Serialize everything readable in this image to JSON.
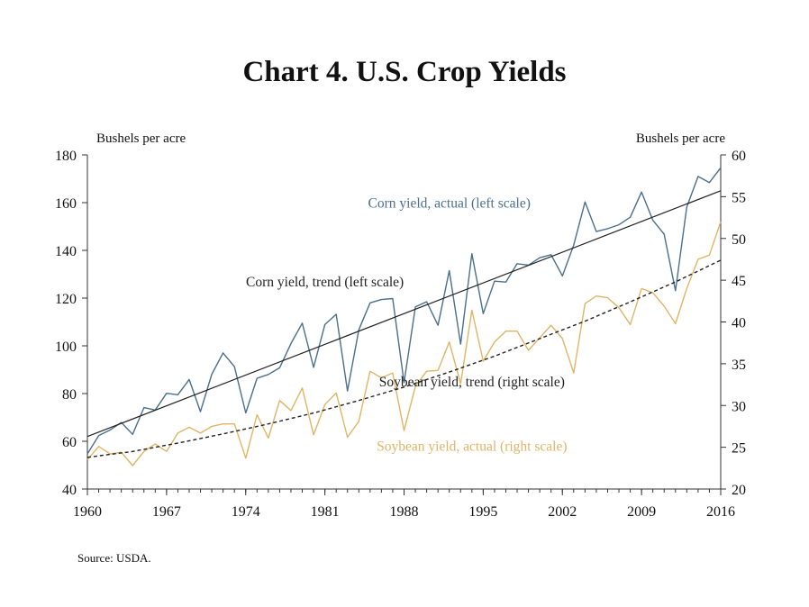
{
  "title": "Chart 4. U.S. Crop Yields",
  "source": "Source: USDA.",
  "colors": {
    "corn": "#4a6f8f",
    "soybean": "#e2b465",
    "trend": "#222222",
    "axis": "#333333"
  },
  "chart_data": {
    "type": "line",
    "left_axis": {
      "label": "Bushels per acre",
      "range": [
        40,
        180
      ],
      "ticks": [
        40,
        60,
        80,
        100,
        120,
        140,
        160,
        180
      ]
    },
    "right_axis": {
      "label": "Bushels per acre",
      "range": [
        20,
        60
      ],
      "ticks": [
        20,
        25,
        30,
        35,
        40,
        45,
        50,
        55,
        60
      ]
    },
    "x_range": [
      1960,
      2016
    ],
    "x_ticks": [
      1960,
      1967,
      1974,
      1981,
      1988,
      1995,
      2002,
      2009,
      2016
    ],
    "grid": false,
    "series": [
      {
        "name": "Corn yield, actual (left scale)",
        "axis": "left",
        "style": "solid",
        "x": [
          1960,
          1961,
          1962,
          1963,
          1964,
          1965,
          1966,
          1967,
          1968,
          1969,
          1970,
          1971,
          1972,
          1973,
          1974,
          1975,
          1976,
          1977,
          1978,
          1979,
          1980,
          1981,
          1982,
          1983,
          1984,
          1985,
          1986,
          1987,
          1988,
          1989,
          1990,
          1991,
          1992,
          1993,
          1994,
          1995,
          1996,
          1997,
          1998,
          1999,
          2000,
          2001,
          2002,
          2003,
          2004,
          2005,
          2006,
          2007,
          2008,
          2009,
          2010,
          2011,
          2012,
          2013,
          2014,
          2015,
          2016
        ],
        "y": [
          54.7,
          62.4,
          64.7,
          67.9,
          62.9,
          74.1,
          73.1,
          80.1,
          79.5,
          85.9,
          72.4,
          88.1,
          97.0,
          91.3,
          71.9,
          86.4,
          88.0,
          90.8,
          101.0,
          109.5,
          91.0,
          108.9,
          113.2,
          81.1,
          106.7,
          118.0,
          119.4,
          119.8,
          84.6,
          116.3,
          118.5,
          108.6,
          131.5,
          100.7,
          138.6,
          113.5,
          127.1,
          126.7,
          134.4,
          133.8,
          136.9,
          138.2,
          129.3,
          142.2,
          160.3,
          147.9,
          149.1,
          150.7,
          153.9,
          164.4,
          152.6,
          146.8,
          123.1,
          158.1,
          171.0,
          168.4,
          174.6
        ]
      },
      {
        "name": "Corn yield, trend (left scale)",
        "axis": "left",
        "style": "solid",
        "x": [
          1960,
          2016
        ],
        "y": [
          62,
          165
        ]
      },
      {
        "name": "Soybean yield, actual (right scale)",
        "axis": "right",
        "style": "solid",
        "x": [
          1960,
          1961,
          1962,
          1963,
          1964,
          1965,
          1966,
          1967,
          1968,
          1969,
          1970,
          1971,
          1972,
          1973,
          1974,
          1975,
          1976,
          1977,
          1978,
          1979,
          1980,
          1981,
          1982,
          1983,
          1984,
          1985,
          1986,
          1987,
          1988,
          1989,
          1990,
          1991,
          1992,
          1993,
          1994,
          1995,
          1996,
          1997,
          1998,
          1999,
          2000,
          2001,
          2002,
          2003,
          2004,
          2005,
          2006,
          2007,
          2008,
          2009,
          2010,
          2011,
          2012,
          2013,
          2014,
          2015,
          2016
        ],
        "y": [
          23.5,
          25.1,
          24.2,
          24.4,
          22.8,
          24.5,
          25.4,
          24.5,
          26.7,
          27.4,
          26.7,
          27.5,
          27.8,
          27.8,
          23.7,
          28.9,
          26.1,
          30.6,
          29.4,
          32.1,
          26.5,
          30.1,
          31.5,
          26.2,
          28.1,
          34.1,
          33.3,
          33.9,
          27.0,
          32.3,
          34.1,
          34.2,
          37.6,
          32.6,
          41.4,
          35.3,
          37.6,
          38.9,
          38.9,
          36.6,
          38.1,
          39.6,
          38.0,
          33.9,
          42.2,
          43.1,
          42.9,
          41.7,
          39.7,
          44.0,
          43.5,
          41.9,
          39.8,
          44.0,
          47.5,
          48.0,
          52.0
        ]
      },
      {
        "name": "Soybean yield, trend (right scale)",
        "axis": "right",
        "style": "dashed",
        "x": [
          1960,
          1964,
          1968,
          1972,
          1976,
          1980,
          1984,
          1988,
          1992,
          1996,
          2000,
          2004,
          2008,
          2012,
          2016
        ],
        "y": [
          23.8,
          24.5,
          25.5,
          26.6,
          27.8,
          29.1,
          30.6,
          32.2,
          34.0,
          35.9,
          38.0,
          40.1,
          42.4,
          44.8,
          47.4
        ]
      }
    ],
    "annotations": [
      {
        "text": "Corn yield, actual (left scale)",
        "x": 1992,
        "y": 158,
        "axis": "left",
        "color": "corn"
      },
      {
        "text": "Corn yield, trend (left scale)",
        "x": 1981,
        "y": 125,
        "axis": "left",
        "color": "trend"
      },
      {
        "text": "Soybean yield, trend (right scale)",
        "x": 1994,
        "y": 32.3,
        "axis": "right",
        "color": "trend"
      },
      {
        "text": "Soybean yield, actual (right scale)",
        "x": 1994,
        "y": 24.6,
        "axis": "right",
        "color": "soybean"
      }
    ]
  }
}
